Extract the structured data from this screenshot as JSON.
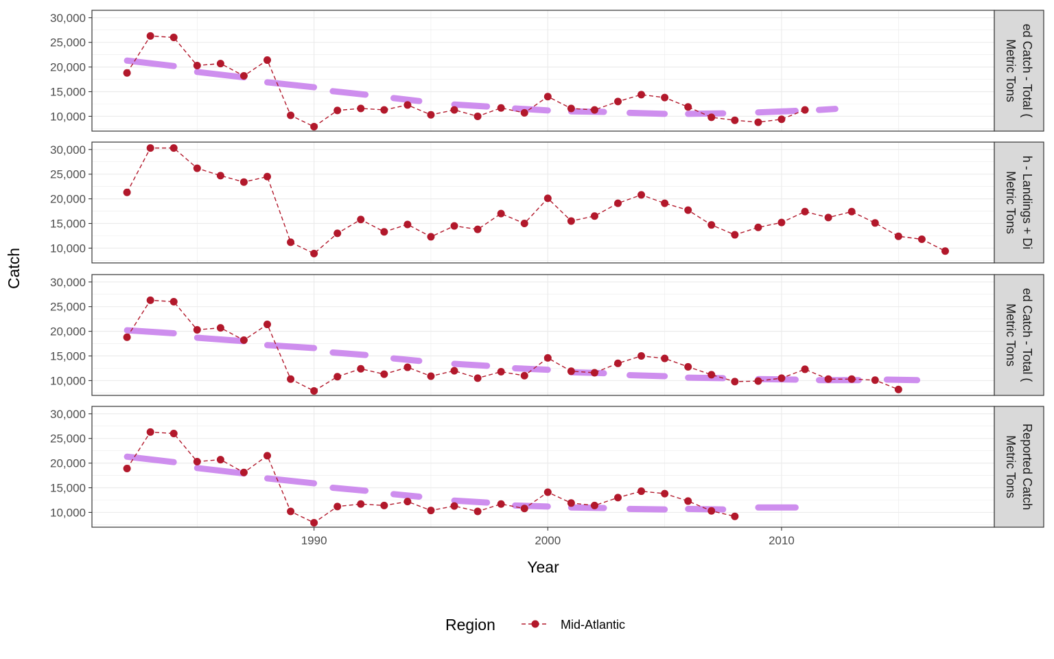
{
  "chart_data": {
    "type": "line",
    "xlabel": "Year",
    "ylabel": "Catch",
    "xlim": [
      1980.5,
      2019.1
    ],
    "ylim": [
      7000,
      31500
    ],
    "x_ticks": [
      1990,
      2000,
      2010
    ],
    "y_ticks": [
      10000,
      15000,
      20000,
      25000,
      30000
    ],
    "y_tick_labels": [
      "10,000",
      "15,000",
      "20,000",
      "25,000",
      "30,000"
    ],
    "grid": true,
    "legend": {
      "title": "Region",
      "position": "bottom",
      "entries": [
        "Mid-Atlantic"
      ]
    },
    "colors": {
      "series": "#b2182b",
      "mean_segments": "#cc88ee",
      "strip_fill": "#d9d9d9",
      "panel_border": "#333333",
      "grid": "#ebebeb"
    },
    "panels": [
      {
        "strip_lines": [
          "ed Catch - Total (",
          "Metric Tons"
        ],
        "series": {
          "name": "Mid-Atlantic",
          "x": [
            1982,
            1983,
            1984,
            1985,
            1986,
            1987,
            1988,
            1989,
            1990,
            1991,
            1992,
            1993,
            1994,
            1995,
            1996,
            1997,
            1998,
            1999,
            2000,
            2001,
            2002,
            2003,
            2004,
            2005,
            2006,
            2007,
            2008,
            2009,
            2010,
            2011
          ],
          "y": [
            18800,
            26300,
            26000,
            20300,
            20700,
            18200,
            21400,
            10200,
            7900,
            11200,
            11600,
            11300,
            12300,
            10300,
            11300,
            10000,
            11700,
            10700,
            14000,
            11600,
            11300,
            13000,
            14400,
            13800,
            11900,
            9800,
            9200,
            8800,
            9400,
            11300
          ]
        },
        "mean_segments": [
          {
            "x": [
              1982,
              1984
            ],
            "y": [
              21300,
              20200
            ]
          },
          {
            "x": [
              1985,
              1987
            ],
            "y": [
              19000,
              17900
            ]
          },
          {
            "x": [
              1988,
              1990
            ],
            "y": [
              16900,
              15900
            ]
          },
          {
            "x": [
              1990.8,
              1992.2
            ],
            "y": [
              15100,
              14400
            ]
          },
          {
            "x": [
              1993.4,
              1994.5
            ],
            "y": [
              13700,
              13100
            ]
          },
          {
            "x": [
              1996,
              1997.4
            ],
            "y": [
              12400,
              12000
            ]
          },
          {
            "x": [
              1998.6,
              2000
            ],
            "y": [
              11600,
              11200
            ]
          },
          {
            "x": [
              2001,
              2002.4
            ],
            "y": [
              11000,
              10900
            ]
          },
          {
            "x": [
              2003.5,
              2005
            ],
            "y": [
              10700,
              10500
            ]
          },
          {
            "x": [
              2006,
              2007.5
            ],
            "y": [
              10500,
              10600
            ]
          },
          {
            "x": [
              2009,
              2010.6
            ],
            "y": [
              10800,
              11100
            ]
          },
          {
            "x": [
              2011.6,
              2012.3
            ],
            "y": [
              11300,
              11500
            ]
          }
        ]
      },
      {
        "strip_lines": [
          "h - Landings + Di",
          "Metric Tons"
        ],
        "series": {
          "name": "Mid-Atlantic",
          "x": [
            1982,
            1983,
            1984,
            1985,
            1986,
            1987,
            1988,
            1989,
            1990,
            1991,
            1992,
            1993,
            1994,
            1995,
            1996,
            1997,
            1998,
            1999,
            2000,
            2001,
            2002,
            2003,
            2004,
            2005,
            2006,
            2007,
            2008,
            2009,
            2010,
            2011,
            2012,
            2013,
            2014,
            2015,
            2016,
            2017
          ],
          "y": [
            21300,
            30300,
            30300,
            26200,
            24700,
            23400,
            24500,
            11200,
            8900,
            13000,
            15800,
            13300,
            14800,
            12300,
            14500,
            13800,
            17000,
            15000,
            20100,
            15500,
            16500,
            19100,
            20800,
            19100,
            17700,
            14700,
            12700,
            14200,
            15200,
            17400,
            16200,
            17400,
            15100,
            12400,
            11800,
            9400
          ]
        },
        "mean_segments": []
      },
      {
        "strip_lines": [
          "ed Catch - Total (",
          "Metric Tons"
        ],
        "series": {
          "name": "Mid-Atlantic",
          "x": [
            1982,
            1983,
            1984,
            1985,
            1986,
            1987,
            1988,
            1989,
            1990,
            1991,
            1992,
            1993,
            1994,
            1995,
            1996,
            1997,
            1998,
            1999,
            2000,
            2001,
            2002,
            2003,
            2004,
            2005,
            2006,
            2007,
            2008,
            2009,
            2010,
            2011,
            2012,
            2013,
            2014,
            2015
          ],
          "y": [
            18800,
            26300,
            26000,
            20300,
            20700,
            18200,
            21400,
            10300,
            7900,
            10800,
            12400,
            11300,
            12700,
            10900,
            12000,
            10500,
            11800,
            11000,
            14600,
            11900,
            11600,
            13500,
            15000,
            14500,
            12800,
            11200,
            9800,
            9900,
            10500,
            12300,
            10300,
            10300,
            10100,
            8200
          ]
        },
        "mean_segments": [
          {
            "x": [
              1982,
              1984
            ],
            "y": [
              20200,
              19600
            ]
          },
          {
            "x": [
              1985,
              1987
            ],
            "y": [
              18700,
              18000
            ]
          },
          {
            "x": [
              1988,
              1990
            ],
            "y": [
              17200,
              16600
            ]
          },
          {
            "x": [
              1990.8,
              1992.2
            ],
            "y": [
              15700,
              15200
            ]
          },
          {
            "x": [
              1993.4,
              1994.5
            ],
            "y": [
              14500,
              14000
            ]
          },
          {
            "x": [
              1996,
              1997.4
            ],
            "y": [
              13400,
              13000
            ]
          },
          {
            "x": [
              1998.6,
              2000
            ],
            "y": [
              12500,
              12200
            ]
          },
          {
            "x": [
              2001,
              2002.4
            ],
            "y": [
              11700,
              11500
            ]
          },
          {
            "x": [
              2003.5,
              2005
            ],
            "y": [
              11100,
              10900
            ]
          },
          {
            "x": [
              2006,
              2007.5
            ],
            "y": [
              10600,
              10500
            ]
          },
          {
            "x": [
              2009,
              2010.6
            ],
            "y": [
              10300,
              10200
            ]
          },
          {
            "x": [
              2011.6,
              2013.3
            ],
            "y": [
              10100,
              10100
            ]
          },
          {
            "x": [
              2014.5,
              2015.8
            ],
            "y": [
              10200,
              10100
            ]
          }
        ]
      },
      {
        "strip_lines": [
          "Reported Catch",
          "Metric Tons"
        ],
        "series": {
          "name": "Mid-Atlantic",
          "x": [
            1982,
            1983,
            1984,
            1985,
            1986,
            1987,
            1988,
            1989,
            1990,
            1991,
            1992,
            1993,
            1994,
            1995,
            1996,
            1997,
            1998,
            1999,
            2000,
            2001,
            2002,
            2003,
            2004,
            2005,
            2006,
            2007,
            2008
          ],
          "y": [
            18900,
            26300,
            26000,
            20300,
            20700,
            18100,
            21500,
            10200,
            7900,
            11200,
            11700,
            11400,
            12200,
            10400,
            11300,
            10200,
            11700,
            10800,
            14100,
            11900,
            11400,
            13000,
            14300,
            13800,
            12300,
            10300,
            9200
          ]
        },
        "mean_segments": [
          {
            "x": [
              1982,
              1984
            ],
            "y": [
              21300,
              20200
            ]
          },
          {
            "x": [
              1985,
              1987
            ],
            "y": [
              19000,
              17900
            ]
          },
          {
            "x": [
              1988,
              1990
            ],
            "y": [
              16900,
              15900
            ]
          },
          {
            "x": [
              1990.8,
              1992.2
            ],
            "y": [
              15000,
              14400
            ]
          },
          {
            "x": [
              1993.4,
              1994.5
            ],
            "y": [
              13700,
              13200
            ]
          },
          {
            "x": [
              1996,
              1997.4
            ],
            "y": [
              12400,
              12000
            ]
          },
          {
            "x": [
              1998.6,
              2000
            ],
            "y": [
              11400,
              11200
            ]
          },
          {
            "x": [
              2001,
              2002.4
            ],
            "y": [
              11000,
              10900
            ]
          },
          {
            "x": [
              2003.5,
              2005
            ],
            "y": [
              10700,
              10600
            ]
          },
          {
            "x": [
              2006,
              2007.5
            ],
            "y": [
              10700,
              10600
            ]
          },
          {
            "x": [
              2009,
              2010.6
            ],
            "y": [
              11000,
              11000
            ]
          }
        ]
      }
    ]
  }
}
